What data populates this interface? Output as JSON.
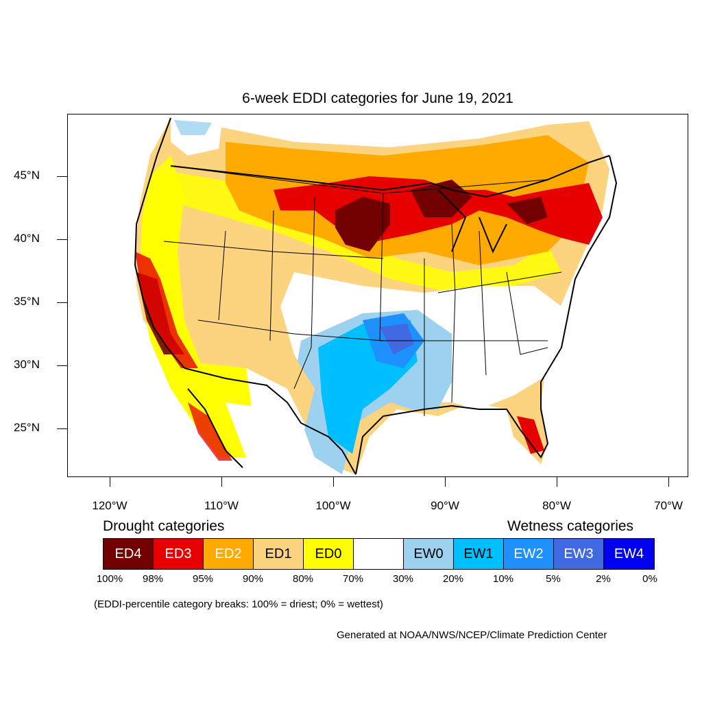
{
  "title": "6-week EDDI categories for June 19, 2021",
  "latitude_labels": [
    "45°N",
    "40°N",
    "35°N",
    "30°N",
    "25°N"
  ],
  "longitude_labels": [
    "120°W",
    "110°W",
    "100°W",
    "90°W",
    "80°W",
    "70°W"
  ],
  "legend": {
    "drought_title": "Drought categories",
    "wetness_title": "Wetness categories",
    "categories": [
      {
        "label": "ED4",
        "color": "#730000",
        "text_color": "#ffffff"
      },
      {
        "label": "ED3",
        "color": "#e60000",
        "text_color": "#ffffff"
      },
      {
        "label": "ED2",
        "color": "#ffaa00",
        "text_color": "#ffffff"
      },
      {
        "label": "ED1",
        "color": "#fcd37f",
        "text_color": "#000000"
      },
      {
        "label": "ED0",
        "color": "#ffff00",
        "text_color": "#000000"
      },
      {
        "label": "",
        "color": "#ffffff",
        "text_color": "#000000"
      },
      {
        "label": "EW0",
        "color": "#9dd1f0",
        "text_color": "#000000"
      },
      {
        "label": "EW1",
        "color": "#00bfff",
        "text_color": "#000000"
      },
      {
        "label": "EW2",
        "color": "#1e90ff",
        "text_color": "#ffffff"
      },
      {
        "label": "EW3",
        "color": "#4169e1",
        "text_color": "#ffffff"
      },
      {
        "label": "EW4",
        "color": "#0000f0",
        "text_color": "#ffffff"
      }
    ],
    "percentile_breaks": [
      "100%",
      "98%",
      "95%",
      "90%",
      "80%",
      "70%",
      "30%",
      "20%",
      "10%",
      "5%",
      "2%",
      "0%"
    ]
  },
  "note": "(EDDI-percentile category breaks: 100% = driest; 0% = wettest)",
  "credit": "Generated at NOAA/NWS/NCEP/Climate Prediction Center"
}
